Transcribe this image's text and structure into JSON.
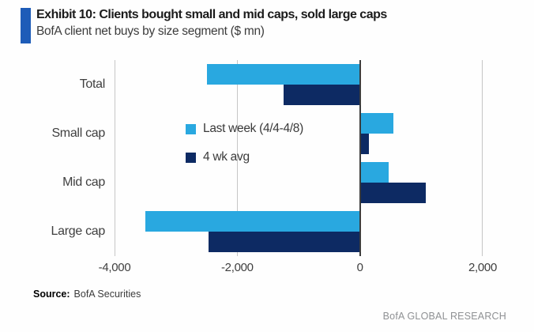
{
  "header": {
    "exhibit_title": "Exhibit 10: Clients bought small and mid caps, sold large caps",
    "subtitle": "BofA client net buys by size segment ($ mn)",
    "accent_color": "#1e5cb8"
  },
  "chart_data": {
    "type": "bar",
    "orientation": "horizontal",
    "title": "BofA client net buys by size segment ($ mn)",
    "categories": [
      "Total",
      "Small cap",
      "Mid cap",
      "Large cap"
    ],
    "series": [
      {
        "name": "Last week (4/4-4/8)",
        "color": "#29a8e0",
        "values": [
          -2500,
          550,
          470,
          -3500
        ]
      },
      {
        "name": "4 wk avg",
        "color": "#0d2a63",
        "values": [
          -1250,
          150,
          1070,
          -2470
        ]
      }
    ],
    "xlim": [
      -4000,
      2000
    ],
    "xticks": [
      -4000,
      -2000,
      0,
      2000
    ],
    "xtick_labels": [
      "-4,000",
      "-2,000",
      "0",
      "2,000"
    ],
    "grid": true,
    "legend_position": "inside-left",
    "unit": "$ mn",
    "gridline_color": "#c6c6c6",
    "zero_line_color": "#3d3d3d"
  },
  "footer": {
    "source_label": "Source:",
    "source_value": "BofA Securities",
    "brand": "BofA GLOBAL RESEARCH"
  }
}
